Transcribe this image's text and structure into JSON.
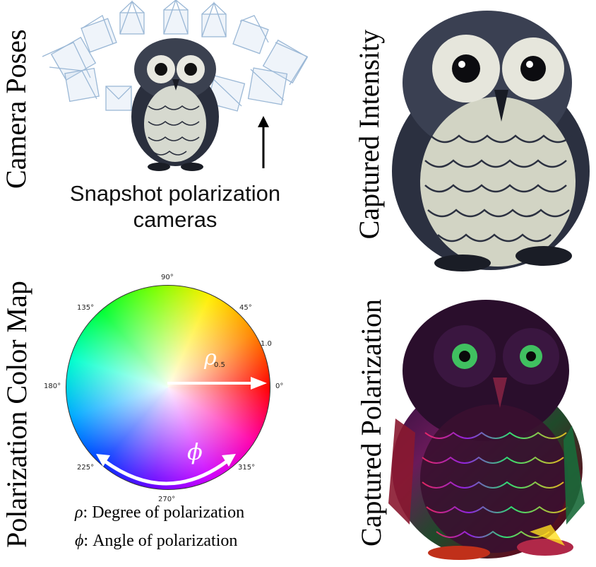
{
  "panels": {
    "camera_poses": {
      "label": "Camera Poses",
      "caption_line1": "Snapshot polarization",
      "caption_line2": "cameras"
    },
    "captured_intensity": {
      "label": "Captured Intensity"
    },
    "color_map": {
      "label": "Polarization Color Map",
      "ticks": {
        "t0": "0°",
        "t45": "45°",
        "t90": "90°",
        "t135": "135°",
        "t180": "180°",
        "t225": "225°",
        "t270": "270°",
        "t315": "315°",
        "r05": "0.5",
        "r10": "1.0"
      },
      "rho_symbol": "ρ",
      "phi_symbol": "ϕ",
      "legend": {
        "rho_sym": "ρ",
        "rho_text": ": Degree of polarization",
        "phi_sym": "ϕ",
        "phi_text": ": Angle of polarization"
      }
    },
    "captured_polarization": {
      "label": "Captured Polarization"
    }
  }
}
